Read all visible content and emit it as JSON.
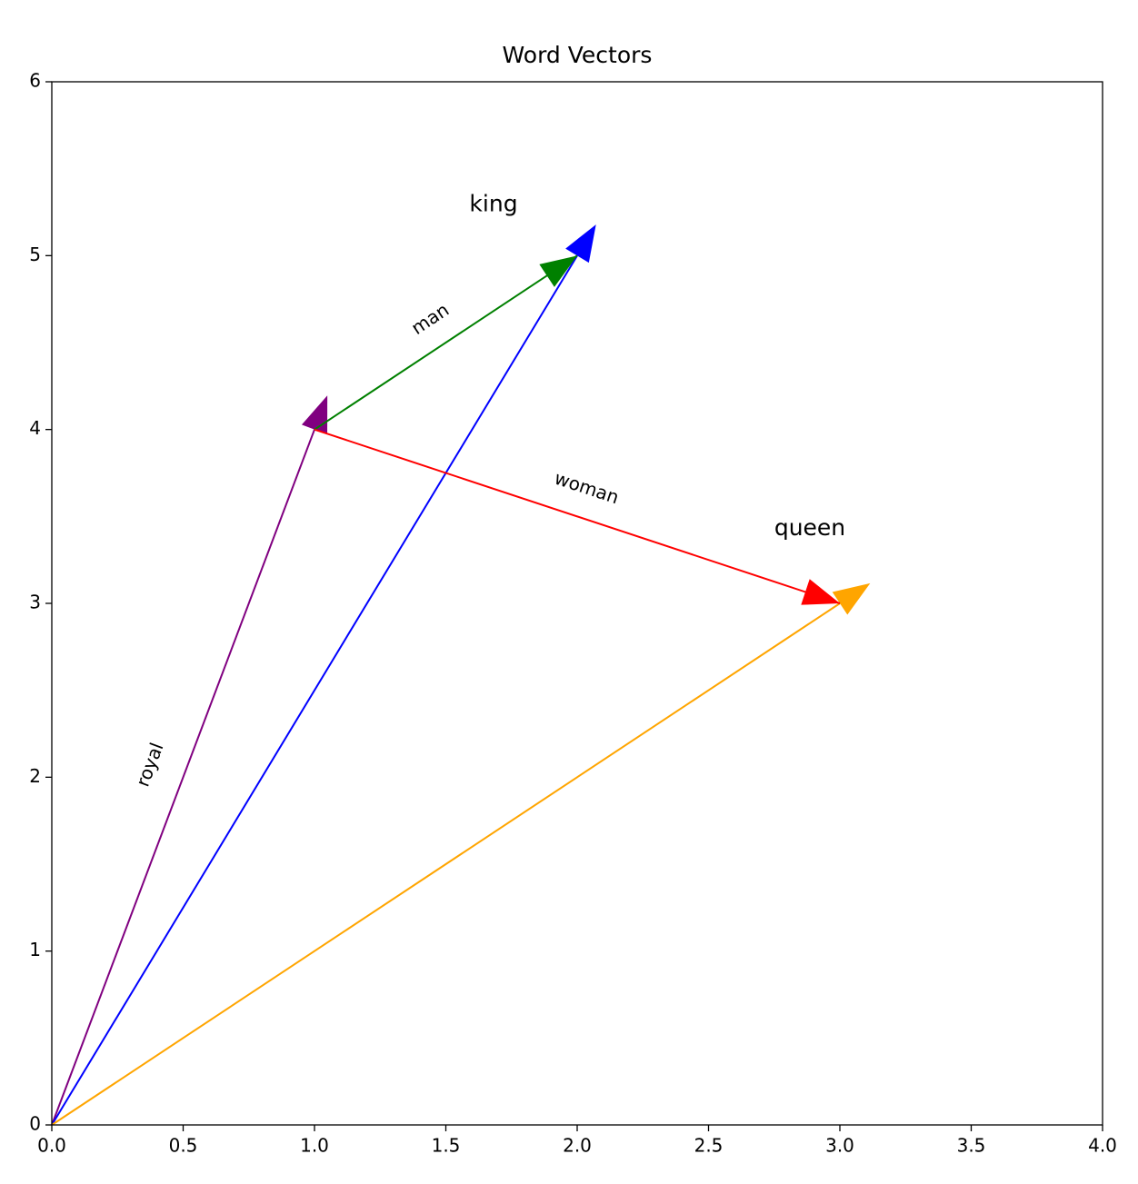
{
  "chart_data": {
    "type": "vector",
    "title": "Word Vectors",
    "xlim": [
      0,
      4
    ],
    "ylim": [
      0,
      6
    ],
    "xticks": [
      {
        "value": 0,
        "label": "0.0"
      },
      {
        "value": 0.5,
        "label": "0.5"
      },
      {
        "value": 1,
        "label": "1.0"
      },
      {
        "value": 1.5,
        "label": "1.5"
      },
      {
        "value": 2,
        "label": "2.0"
      },
      {
        "value": 2.5,
        "label": "2.5"
      },
      {
        "value": 3,
        "label": "3.0"
      },
      {
        "value": 3.5,
        "label": "3.5"
      },
      {
        "value": 4,
        "label": "4.0"
      }
    ],
    "yticks": [
      0,
      1,
      2,
      3,
      4,
      5,
      6
    ],
    "grid": false,
    "series": [
      {
        "name": "royal",
        "color": "#800080",
        "x": [
          0,
          1
        ],
        "values": [
          0,
          4
        ]
      },
      {
        "name": "king",
        "color": "#0000ff",
        "x": [
          0,
          2
        ],
        "values": [
          0,
          5
        ]
      },
      {
        "name": "queen",
        "color": "#ffa500",
        "x": [
          0,
          3
        ],
        "values": [
          0,
          3
        ]
      },
      {
        "name": "man",
        "color": "#008000",
        "x": [
          1,
          2
        ],
        "values": [
          4,
          5
        ]
      },
      {
        "name": "woman",
        "color": "#ff0000",
        "x": [
          1,
          3
        ],
        "values": [
          4,
          3
        ]
      }
    ]
  }
}
